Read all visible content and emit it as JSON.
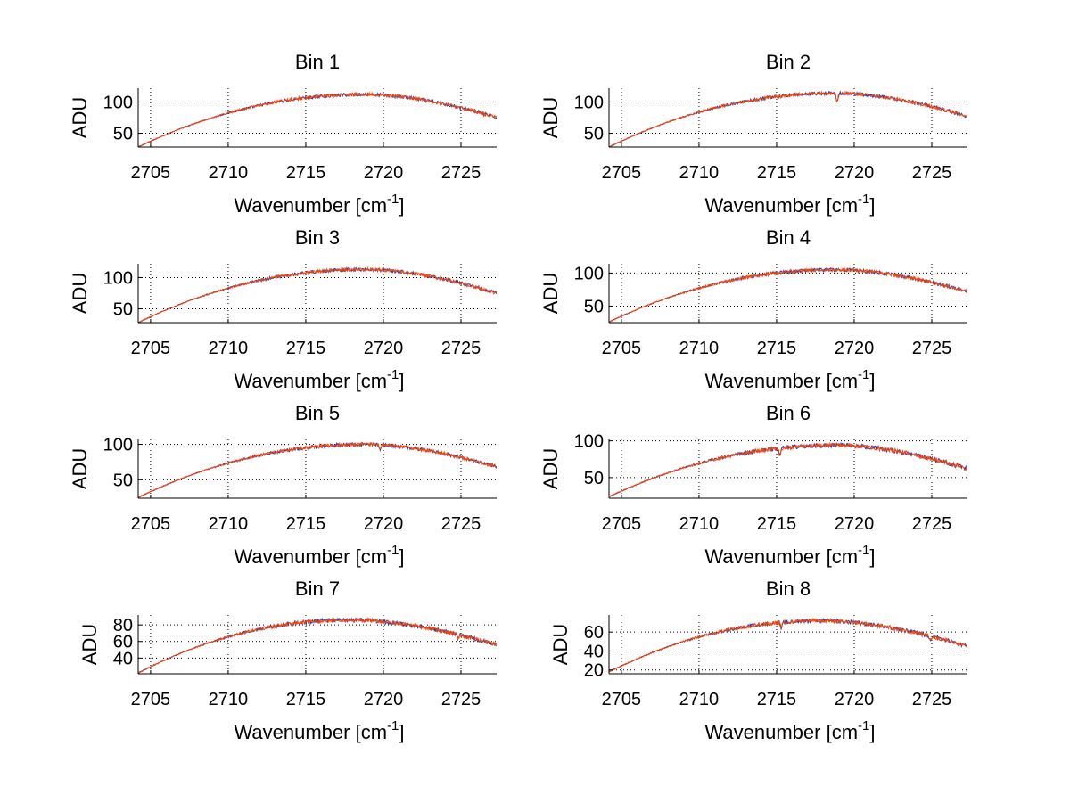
{
  "figure": {
    "background": "#ffffff",
    "colors": {
      "series_1": "#1f3fb4",
      "series_2": "#ff4500",
      "axes": "#000000",
      "grid": "#000000"
    }
  },
  "chart_data": [
    {
      "type": "line",
      "title": "Bin 1",
      "xlabel": "Wavenumber [cm",
      "xlabel_sup": "-1",
      "xlabel_close": "]",
      "ylabel": "ADU",
      "xlim": [
        2704.2,
        2727.3
      ],
      "ylim": [
        28,
        122
      ],
      "xticks": [
        2705,
        2710,
        2715,
        2720,
        2725
      ],
      "yticks": [
        50,
        100
      ],
      "grid": true,
      "shape": {
        "start": 28,
        "peak": 112,
        "peak_x": 2719,
        "end": 75,
        "noise": 2.0
      },
      "dips": []
    },
    {
      "type": "line",
      "title": "Bin 2",
      "xlabel": "Wavenumber [cm",
      "xlabel_sup": "-1",
      "xlabel_close": "]",
      "ylabel": "ADU",
      "xlim": [
        2704.2,
        2727.3
      ],
      "ylim": [
        28,
        122
      ],
      "xticks": [
        2705,
        2710,
        2715,
        2720,
        2725
      ],
      "yticks": [
        50,
        100
      ],
      "grid": true,
      "shape": {
        "start": 28,
        "peak": 114,
        "peak_x": 2719,
        "end": 77,
        "noise": 2.0
      },
      "dips": [
        {
          "x": 2718.9,
          "depth": 14
        }
      ]
    },
    {
      "type": "line",
      "title": "Bin 3",
      "xlabel": "Wavenumber [cm",
      "xlabel_sup": "-1",
      "xlabel_close": "]",
      "ylabel": "ADU",
      "xlim": [
        2704.2,
        2727.3
      ],
      "ylim": [
        28,
        122
      ],
      "xticks": [
        2705,
        2710,
        2715,
        2720,
        2725
      ],
      "yticks": [
        50,
        100
      ],
      "grid": true,
      "shape": {
        "start": 28,
        "peak": 113,
        "peak_x": 2719,
        "end": 75,
        "noise": 2.0
      },
      "dips": []
    },
    {
      "type": "line",
      "title": "Bin 4",
      "xlabel": "Wavenumber [cm",
      "xlabel_sup": "-1",
      "xlabel_close": "]",
      "ylabel": "ADU",
      "xlim": [
        2704.2,
        2727.3
      ],
      "ylim": [
        25,
        114
      ],
      "xticks": [
        2705,
        2710,
        2715,
        2720,
        2725
      ],
      "yticks": [
        50,
        100
      ],
      "grid": true,
      "shape": {
        "start": 26,
        "peak": 105,
        "peak_x": 2719,
        "end": 72,
        "noise": 2.0
      },
      "dips": []
    },
    {
      "type": "line",
      "title": "Bin 5",
      "xlabel": "Wavenumber [cm",
      "xlabel_sup": "-1",
      "xlabel_close": "]",
      "ylabel": "ADU",
      "xlim": [
        2704.2,
        2727.3
      ],
      "ylim": [
        24,
        107
      ],
      "xticks": [
        2705,
        2710,
        2715,
        2720,
        2725
      ],
      "yticks": [
        50,
        100
      ],
      "grid": true,
      "shape": {
        "start": 25,
        "peak": 100,
        "peak_x": 2719,
        "end": 68,
        "noise": 1.8
      },
      "dips": [
        {
          "x": 2719.8,
          "depth": 6
        }
      ]
    },
    {
      "type": "line",
      "title": "Bin 6",
      "xlabel": "Wavenumber [cm",
      "xlabel_sup": "-1",
      "xlabel_close": "]",
      "ylabel": "ADU",
      "xlim": [
        2704.2,
        2727.3
      ],
      "ylim": [
        22,
        102
      ],
      "xticks": [
        2705,
        2710,
        2715,
        2720,
        2725
      ],
      "yticks": [
        50,
        100
      ],
      "grid": true,
      "shape": {
        "start": 24,
        "peak": 94,
        "peak_x": 2719,
        "end": 62,
        "noise": 2.2
      },
      "dips": [
        {
          "x": 2715.2,
          "depth": 10
        }
      ]
    },
    {
      "type": "line",
      "title": "Bin 7",
      "xlabel": "Wavenumber [cm",
      "xlabel_sup": "-1",
      "xlabel_close": "]",
      "ylabel": "ADU",
      "xlim": [
        2704.2,
        2727.3
      ],
      "ylim": [
        21,
        92
      ],
      "xticks": [
        2705,
        2710,
        2715,
        2720,
        2725
      ],
      "yticks": [
        40,
        60,
        80
      ],
      "grid": true,
      "shape": {
        "start": 22,
        "peak": 86,
        "peak_x": 2718,
        "end": 56,
        "noise": 1.8
      },
      "dips": [
        {
          "x": 2724.8,
          "depth": 6
        }
      ]
    },
    {
      "type": "line",
      "title": "Bin 8",
      "xlabel": "Wavenumber [cm",
      "xlabel_sup": "-1",
      "xlabel_close": "]",
      "ylabel": "ADU",
      "xlim": [
        2704.2,
        2727.3
      ],
      "ylim": [
        16,
        78
      ],
      "xticks": [
        2705,
        2710,
        2715,
        2720,
        2725
      ],
      "yticks": [
        20,
        40,
        60
      ],
      "grid": true,
      "shape": {
        "start": 18,
        "peak": 72,
        "peak_x": 2718,
        "end": 45,
        "noise": 1.6
      },
      "dips": [
        {
          "x": 2715.3,
          "depth": 6
        },
        {
          "x": 2724.9,
          "depth": 4
        }
      ]
    }
  ]
}
